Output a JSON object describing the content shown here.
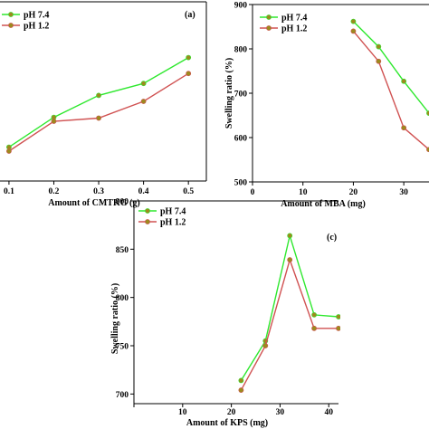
{
  "colors": {
    "ph74": "#2ee82e",
    "ph12": "#d05252",
    "marker": "#9c8a1e",
    "axis": "#000000"
  },
  "chart_data": [
    {
      "panel_label": "(a)",
      "type": "line",
      "xlabel": "Amount of CMTKG (g)",
      "ylabel": "",
      "xlim": [
        0.08,
        0.54
      ],
      "ylim": [
        500,
        950
      ],
      "xticks": [
        0.1,
        0.2,
        0.3,
        0.4,
        0.5
      ],
      "xtick_labels": [
        "0.1",
        "0.2",
        "0.3",
        "0.4",
        "0.5"
      ],
      "yticks": [],
      "ytick_labels": [],
      "legend": "top-left",
      "series": [
        {
          "name": "pH 7.4",
          "color_key": "ph74",
          "x": [
            0.1,
            0.2,
            0.3,
            0.4,
            0.5
          ],
          "y": [
            585,
            660,
            715,
            745,
            810
          ]
        },
        {
          "name": "pH 1.2",
          "color_key": "ph12",
          "x": [
            0.1,
            0.2,
            0.3,
            0.4,
            0.5
          ],
          "y": [
            575,
            650,
            658,
            700,
            770
          ]
        }
      ]
    },
    {
      "panel_label": "",
      "type": "line",
      "xlabel": "Amount of MBA (mg)",
      "ylabel": "Swelling ratio (%)",
      "xlim": [
        0,
        35
      ],
      "ylim": [
        500,
        900
      ],
      "xticks": [
        0,
        10,
        20,
        30
      ],
      "xtick_labels": [
        "0",
        "10",
        "20",
        "30"
      ],
      "yticks": [
        500,
        600,
        700,
        800,
        900
      ],
      "ytick_labels": [
        "500",
        "600",
        "700",
        "800",
        "900"
      ],
      "legend": "top-left",
      "series": [
        {
          "name": "pH 7.4",
          "color_key": "ph74",
          "x": [
            20,
            25,
            30,
            35
          ],
          "y": [
            862,
            805,
            727,
            655
          ]
        },
        {
          "name": "pH 1.2",
          "color_key": "ph12",
          "x": [
            20,
            25,
            30,
            35
          ],
          "y": [
            840,
            772,
            622,
            573
          ]
        }
      ]
    },
    {
      "panel_label": "(c)",
      "type": "line",
      "xlabel": "Amount of KPS (mg)",
      "ylabel": "Swelling ratio (%)",
      "xlim": [
        0,
        42
      ],
      "ylim": [
        690,
        900
      ],
      "xticks": [
        0,
        10,
        20,
        30,
        40
      ],
      "xtick_labels": [
        "",
        "10",
        "20",
        "30",
        "40"
      ],
      "yticks": [
        700,
        750,
        800,
        850,
        900
      ],
      "ytick_labels": [
        "700",
        "750",
        "800",
        "850",
        "900"
      ],
      "legend": "top-left",
      "series": [
        {
          "name": "pH 7.4",
          "color_key": "ph74",
          "x": [
            22,
            27,
            32,
            37,
            42
          ],
          "y": [
            714,
            755,
            864,
            782,
            780
          ]
        },
        {
          "name": "pH 1.2",
          "color_key": "ph12",
          "x": [
            22,
            27,
            32,
            37,
            42
          ],
          "y": [
            704,
            750,
            839,
            768,
            768
          ]
        }
      ]
    }
  ]
}
